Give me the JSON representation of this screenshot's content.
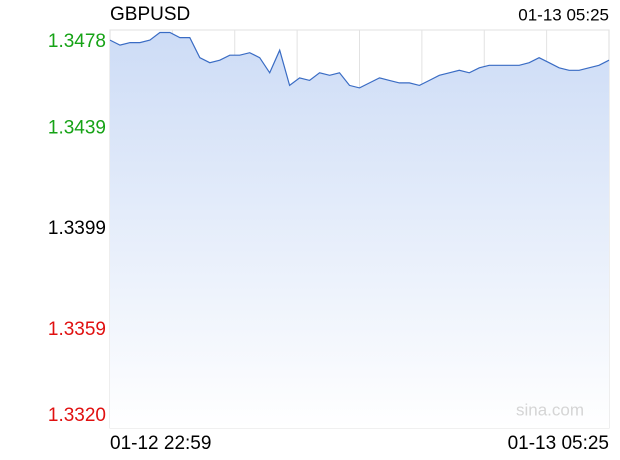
{
  "chart_data": {
    "type": "area",
    "title": "GBPUSD",
    "timestamp": "01-13 05:25",
    "watermark": "sina.com",
    "categories": [
      "01-12 22:59",
      null,
      null,
      null,
      null,
      null,
      null,
      null,
      null,
      null,
      null,
      null,
      null,
      null,
      null,
      null,
      null,
      null,
      null,
      null,
      null,
      null,
      null,
      null,
      null,
      null,
      null,
      null,
      null,
      null,
      null,
      null,
      null,
      null,
      null,
      null,
      null,
      null,
      null,
      null,
      null,
      null,
      null,
      null,
      null,
      null,
      null,
      null,
      null,
      null,
      "01-13 05:25"
    ],
    "values": [
      1.3474,
      1.3472,
      1.3473,
      1.3473,
      1.3474,
      1.3477,
      1.3477,
      1.3475,
      1.3475,
      1.3467,
      1.3465,
      1.3466,
      1.3468,
      1.3468,
      1.3469,
      1.3467,
      1.3461,
      1.347,
      1.3456,
      1.3459,
      1.3458,
      1.3461,
      1.346,
      1.3461,
      1.3456,
      1.3455,
      1.3457,
      1.3459,
      1.3458,
      1.3457,
      1.3457,
      1.3456,
      1.3458,
      1.346,
      1.3461,
      1.3462,
      1.3461,
      1.3463,
      1.3464,
      1.3464,
      1.3464,
      1.3464,
      1.3465,
      1.3467,
      1.3465,
      1.3463,
      1.3462,
      1.3462,
      1.3463,
      1.3464,
      1.3466
    ],
    "color": "#3a6cc4",
    "up_color": "#16a316",
    "down_color": "#e01010",
    "ylim": [
      1.332,
      1.3478
    ],
    "yticks": [
      1.3478,
      1.3439,
      1.3399,
      1.3359,
      {
        "value": 1.332,
        "label": "1.3320"
      }
    ],
    "grid": true
  }
}
